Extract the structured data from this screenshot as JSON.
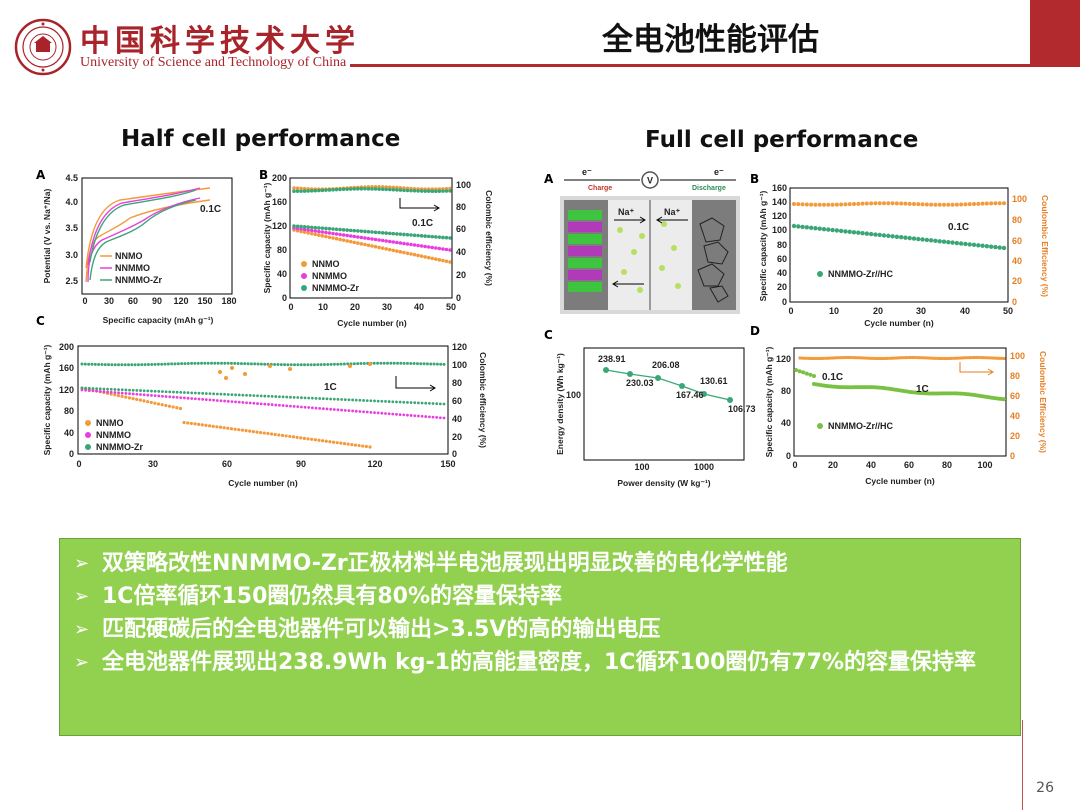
{
  "header": {
    "university_cn": "中国科学技术大学",
    "university_en": "University of Science and Technology of China",
    "title": "全电池性能评估",
    "brand_color": "#b32a2e"
  },
  "sections": {
    "half_cell_title": "Half cell performance",
    "full_cell_title": "Full cell performance"
  },
  "panel_labels": [
    "A",
    "B",
    "C",
    "A",
    "B",
    "C",
    "D"
  ],
  "half_cell": {
    "a": {
      "ylabel": "Potential (V vs. Na⁺/Na)",
      "xlabel": "Specific capacity (mAh g⁻¹)",
      "rate": "0.1C",
      "yticks": [
        "4.5",
        "4.0",
        "3.5",
        "3.0",
        "2.5"
      ],
      "xticks": [
        "0",
        "30",
        "60",
        "90",
        "120",
        "150",
        "180"
      ],
      "legend": [
        "NNMO",
        "NNMMO",
        "NNMMO-Zr"
      ]
    },
    "b": {
      "ylabel": "Specific capacity (mAh g⁻¹)",
      "y2label": "Colombic efficiency (%)",
      "xlabel": "Cycle number (n)",
      "rate": "0.1C",
      "yticks": [
        "200",
        "160",
        "120",
        "80",
        "40",
        "0"
      ],
      "y2ticks": [
        "100",
        "80",
        "60",
        "40",
        "20",
        "0"
      ],
      "xticks": [
        "0",
        "10",
        "20",
        "30",
        "40",
        "50"
      ],
      "legend": [
        "NNMO",
        "NNMMO",
        "NNMMO-Zr"
      ]
    },
    "c": {
      "ylabel": "Specific capacity (mAh g⁻¹)",
      "y2label": "Colombic efficiency (%)",
      "xlabel": "Cycle number (n)",
      "rate": "1C",
      "yticks": [
        "200",
        "160",
        "120",
        "80",
        "40",
        "0"
      ],
      "y2ticks": [
        "120",
        "100",
        "80",
        "60",
        "40",
        "20",
        "0"
      ],
      "xticks": [
        "0",
        "30",
        "60",
        "90",
        "120",
        "150"
      ],
      "legend": [
        "NNMO",
        "NNMMO",
        "NNMMO-Zr"
      ]
    }
  },
  "full_cell": {
    "a": {
      "charge": "Charge",
      "discharge": "Discharge",
      "electron": "e⁻",
      "ion": "Na⁺",
      "voltmeter": "V"
    },
    "b": {
      "ylabel": "Specific capacity (mAh g⁻¹)",
      "y2label": "Coulombic Efficiency (%)",
      "xlabel": "Cycle number (n)",
      "rate": "0.1C",
      "yticks": [
        "160",
        "140",
        "120",
        "100",
        "80",
        "60",
        "40",
        "20",
        "0"
      ],
      "y2ticks": [
        "100",
        "80",
        "60",
        "40",
        "20",
        "0"
      ],
      "xticks": [
        "0",
        "10",
        "20",
        "30",
        "40",
        "50"
      ],
      "legend": [
        "NNMMO-Zr//HC"
      ]
    },
    "c": {
      "ylabel": "Energy density (Wh kg⁻¹)",
      "xlabel": "Power density (W kg⁻¹)",
      "yticks": [
        "100"
      ],
      "xticks": [
        "100",
        "1000"
      ],
      "point_labels": [
        "238.91",
        "230.03",
        "206.08",
        "167.46",
        "130.61",
        "106.73"
      ]
    },
    "d": {
      "ylabel": "Specific capacity (mAh g⁻¹)",
      "y2label": "Coulombic Efficiency (%)",
      "xlabel": "Cycle number (n)",
      "rate_low": "0.1C",
      "rate_high": "1C",
      "yticks": [
        "120",
        "80",
        "40",
        "0"
      ],
      "y2ticks": [
        "100",
        "80",
        "60",
        "40",
        "20",
        "0"
      ],
      "xticks": [
        "0",
        "20",
        "40",
        "60",
        "80",
        "100"
      ],
      "legend": [
        "NNMMO-Zr//HC"
      ]
    }
  },
  "colors": {
    "nnmo": "#f39a3a",
    "nnmmo": "#e83ee0",
    "nnmmo_zr": "#3aa676",
    "efficiency": "#f39a3a",
    "summary_bg": "#92d050"
  },
  "summary": {
    "bullets": [
      "双策略改性NNMMO-Zr正极材料半电池展现出明显改善的电化学性能",
      "1C倍率循环150圈仍然具有80%的容量保持率",
      "匹配硬碳后的全电池器件可以输出>3.5V的高的输出电压",
      "全电池器件展现出238.9Wh kg-1的高能量密度，1C循环100圈仍有77%的容量保持率"
    ]
  },
  "page_number": "26"
}
